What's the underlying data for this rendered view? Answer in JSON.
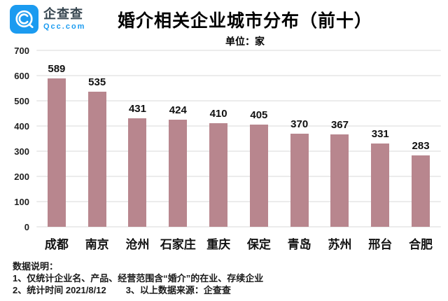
{
  "header": {
    "logo_name": "企查查",
    "logo_domain": "Qcc.com",
    "title": "婚介相关企业城市分布（前十）",
    "subtitle": "单位：家"
  },
  "chart_data": {
    "type": "bar",
    "title": "婚介相关企业城市分布（前十）",
    "unit_label": "单位：家",
    "categories": [
      "成都",
      "南京",
      "沧州",
      "石家庄",
      "重庆",
      "保定",
      "青岛",
      "苏州",
      "邢台",
      "合肥"
    ],
    "values": [
      589,
      535,
      431,
      424,
      410,
      405,
      370,
      367,
      331,
      283
    ],
    "xlabel": "",
    "ylabel": "",
    "ylim": [
      0,
      700
    ],
    "yticks": [
      0,
      100,
      200,
      300,
      400,
      500,
      600,
      700
    ],
    "grid": true,
    "legend_position": "none",
    "bar_color": "#b8868e"
  },
  "footer": {
    "heading": "数据说明：",
    "note1": "1、仅统计企业名、产品、经营范围含“婚介”的在业、存续企业",
    "note2": "2、统计时间 2021/8/12",
    "note3": "3、以上数据来源：企查查"
  },
  "colors": {
    "bar": "#b8868e",
    "logo_blue": "#1b9bf0",
    "gridline": "#ececec",
    "text": "#111111"
  }
}
